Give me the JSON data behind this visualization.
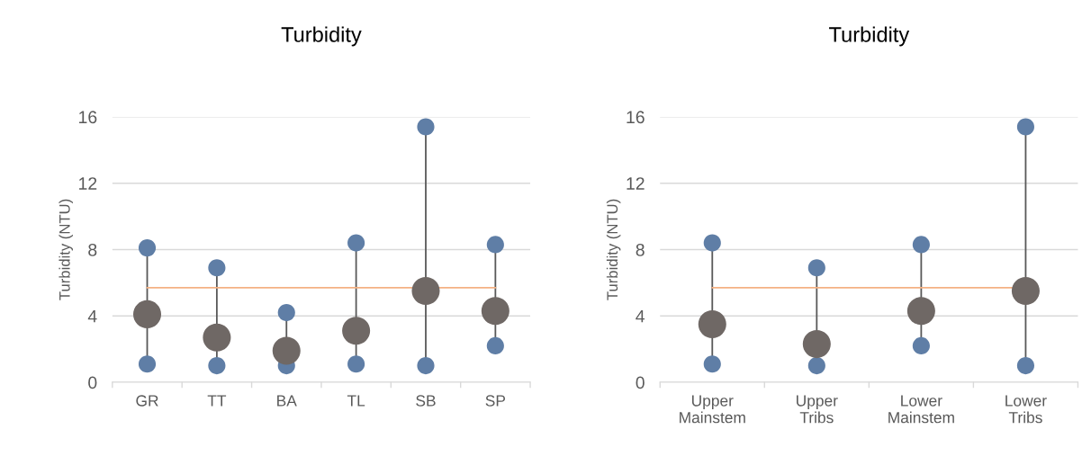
{
  "chart_data": [
    {
      "type": "scatter",
      "title": "Turbidity",
      "ylabel": "Turbidity (NTU)",
      "categories": [
        "GR",
        "TT",
        "BA",
        "TL",
        "SB",
        "SP"
      ],
      "ylim": [
        0,
        16
      ],
      "yticks": [
        0,
        4,
        8,
        12,
        16
      ],
      "grid": "y",
      "marker": "circle",
      "ref_lines": [
        {
          "axis": "y",
          "value": 5.7,
          "color": "#f4b183"
        }
      ],
      "series": [
        {
          "color": "#5f7ea6",
          "values": [
            8.1,
            6.9,
            4.2,
            8.4,
            15.4,
            8.3
          ]
        },
        {
          "color": "#5f7ea6",
          "values": [
            1.1,
            1.0,
            1.0,
            1.1,
            1.0,
            2.2
          ]
        },
        {
          "color": "#6f6865",
          "values": [
            4.1,
            2.7,
            1.9,
            3.1,
            5.5,
            4.3
          ]
        }
      ]
    },
    {
      "type": "scatter",
      "title": "Turbidity",
      "ylabel": "Turbidity (NTU)",
      "categories": [
        "Upper\nMainstem",
        "Upper\nTribs",
        "Lower\nMainstem",
        "Lower\nTribs"
      ],
      "ylim": [
        0,
        16
      ],
      "yticks": [
        0,
        4,
        8,
        12,
        16
      ],
      "grid": "y",
      "marker": "circle",
      "ref_lines": [
        {
          "axis": "y",
          "value": 5.7,
          "color": "#f4b183"
        }
      ],
      "series": [
        {
          "color": "#5f7ea6",
          "values": [
            8.4,
            6.9,
            8.3,
            15.4
          ]
        },
        {
          "color": "#5f7ea6",
          "values": [
            1.1,
            1.0,
            2.2,
            1.0
          ]
        },
        {
          "color": "#6f6865",
          "values": [
            3.5,
            2.3,
            4.3,
            5.5
          ]
        }
      ]
    }
  ]
}
